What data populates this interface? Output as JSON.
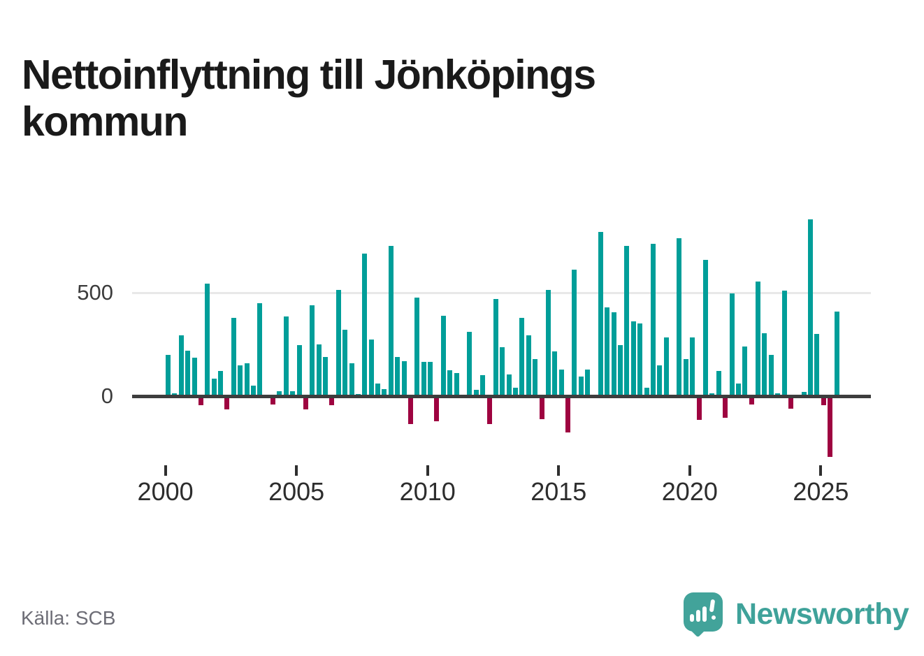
{
  "title": "Nettoinflyttning till Jönköpings kommun",
  "source": {
    "label": "Källa: SCB"
  },
  "branding": {
    "name": "Newsworthy",
    "icon": "newsworthy-speech-bubble-chart-icon"
  },
  "colors": {
    "positive_bar": "#009e99",
    "negative_bar": "#9e0340",
    "axis_line": "#3d3d3d",
    "gridline": "#e8e8e8",
    "brand_teal": "#42a39a"
  },
  "chart_data": {
    "type": "bar",
    "title": "Nettoinflyttning till Jönköpings kommun",
    "xlabel": "",
    "ylabel": "",
    "legend": "none",
    "grid": "single horizontal gridline at y=500",
    "yticks": [
      0,
      500
    ],
    "ylim": [
      -300,
      900
    ],
    "xticks": [
      "2000",
      "2005",
      "2010",
      "2015",
      "2020",
      "2025"
    ],
    "frequency": "quarterly",
    "x": [
      "2000Q1",
      "2000Q2",
      "2000Q3",
      "2000Q4",
      "2001Q1",
      "2001Q2",
      "2001Q3",
      "2001Q4",
      "2002Q1",
      "2002Q2",
      "2002Q3",
      "2002Q4",
      "2003Q1",
      "2003Q2",
      "2003Q3",
      "2003Q4",
      "2004Q1",
      "2004Q2",
      "2004Q3",
      "2004Q4",
      "2005Q1",
      "2005Q2",
      "2005Q3",
      "2005Q4",
      "2006Q1",
      "2006Q2",
      "2006Q3",
      "2006Q4",
      "2007Q1",
      "2007Q2",
      "2007Q3",
      "2007Q4",
      "2008Q1",
      "2008Q2",
      "2008Q3",
      "2008Q4",
      "2009Q1",
      "2009Q2",
      "2009Q3",
      "2009Q4",
      "2010Q1",
      "2010Q2",
      "2010Q3",
      "2010Q4",
      "2011Q1",
      "2011Q2",
      "2011Q3",
      "2011Q4",
      "2012Q1",
      "2012Q2",
      "2012Q3",
      "2012Q4",
      "2013Q1",
      "2013Q2",
      "2013Q3",
      "2013Q4",
      "2014Q1",
      "2014Q2",
      "2014Q3",
      "2014Q4",
      "2015Q1",
      "2015Q2",
      "2015Q3",
      "2015Q4",
      "2016Q1",
      "2016Q2",
      "2016Q3",
      "2016Q4",
      "2017Q1",
      "2017Q2",
      "2017Q3",
      "2017Q4",
      "2018Q1",
      "2018Q2",
      "2018Q3",
      "2018Q4",
      "2019Q1",
      "2019Q2",
      "2019Q3",
      "2019Q4",
      "2020Q1",
      "2020Q2",
      "2020Q3",
      "2020Q4",
      "2021Q1",
      "2021Q2",
      "2021Q3",
      "2021Q4",
      "2022Q1",
      "2022Q2",
      "2022Q3",
      "2022Q4",
      "2023Q1",
      "2023Q2",
      "2023Q3",
      "2023Q4",
      "2024Q1",
      "2024Q2",
      "2024Q3",
      "2024Q4",
      "2025Q1",
      "2025Q2",
      "2025Q3"
    ],
    "values": [
      200,
      15,
      295,
      220,
      185,
      -35,
      545,
      85,
      120,
      -55,
      380,
      150,
      160,
      50,
      450,
      0,
      -30,
      25,
      385,
      25,
      245,
      -55,
      440,
      250,
      190,
      -35,
      515,
      320,
      160,
      10,
      690,
      275,
      60,
      35,
      725,
      190,
      170,
      -125,
      475,
      165,
      165,
      -110,
      390,
      125,
      110,
      0,
      310,
      30,
      100,
      -125,
      470,
      235,
      105,
      40,
      380,
      295,
      180,
      -100,
      515,
      215,
      130,
      -165,
      610,
      95,
      130,
      0,
      795,
      430,
      405,
      245,
      725,
      360,
      350,
      40,
      735,
      150,
      285,
      0,
      765,
      180,
      285,
      -105,
      660,
      15,
      120,
      -95,
      495,
      60,
      240,
      -30,
      555,
      305,
      200,
      15,
      510,
      -50,
      0,
      20,
      855,
      300,
      -35,
      -285,
      410
    ]
  }
}
